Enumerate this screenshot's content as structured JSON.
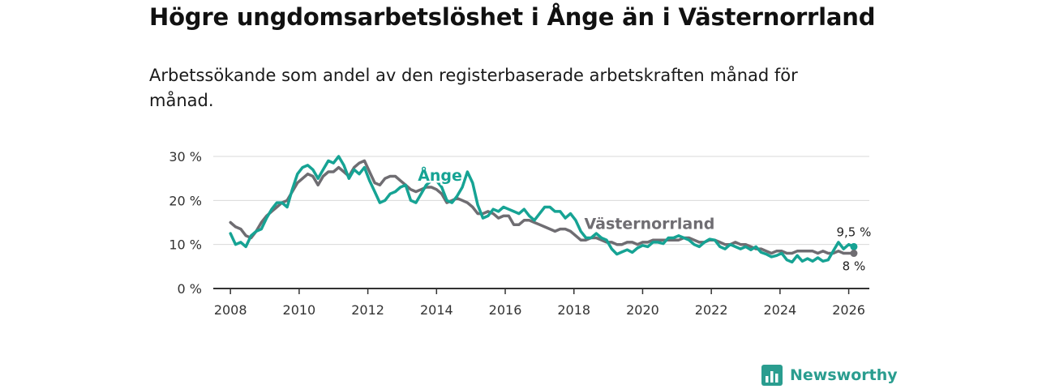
{
  "header": {
    "title": "Högre ungdomsarbetslöshet i Ånge än i Västernorrland",
    "subtitle": "Arbetssökande som andel av den registerbaserade arbetskraften månad för månad."
  },
  "brand": {
    "name": "Newsworthy",
    "icon": "newsworthy-logo-icon"
  },
  "colors": {
    "ange": "#16a394",
    "vasternorrland": "#6f6d72",
    "grid": "#d9d9d9",
    "axis": "#333333"
  },
  "chart_data": {
    "type": "line",
    "title": "Högre ungdomsarbetslöshet i Ånge än i Västernorrland",
    "xlabel": "",
    "ylabel": "",
    "xlim": [
      2007.5,
      2026.6
    ],
    "ylim": [
      0,
      30
    ],
    "x_ticks": [
      2008,
      2010,
      2012,
      2014,
      2016,
      2018,
      2020,
      2022,
      2024,
      2026
    ],
    "x_tick_labels": [
      "2008",
      "2010",
      "2012",
      "2014",
      "2016",
      "2018",
      "2020",
      "2022",
      "2024",
      "2026"
    ],
    "y_ticks": [
      0,
      10,
      20,
      30
    ],
    "y_tick_labels": [
      "0 %",
      "10 %",
      "20 %",
      "30 %"
    ],
    "grid": true,
    "series": [
      {
        "name": "Ånge",
        "label": "Ånge",
        "end_label": "9,5 %",
        "x": [
          2008.0,
          2008.15,
          2008.3,
          2008.45,
          2008.6,
          2008.75,
          2008.9,
          2009.05,
          2009.2,
          2009.35,
          2009.5,
          2009.65,
          2009.8,
          2009.95,
          2010.1,
          2010.25,
          2010.4,
          2010.55,
          2010.7,
          2010.85,
          2011.0,
          2011.15,
          2011.3,
          2011.45,
          2011.6,
          2011.75,
          2011.9,
          2012.05,
          2012.2,
          2012.35,
          2012.5,
          2012.65,
          2012.8,
          2012.95,
          2013.1,
          2013.25,
          2013.4,
          2013.55,
          2013.7,
          2013.85,
          2014.0,
          2014.15,
          2014.3,
          2014.45,
          2014.6,
          2014.75,
          2014.9,
          2015.05,
          2015.2,
          2015.35,
          2015.5,
          2015.65,
          2015.8,
          2015.95,
          2016.1,
          2016.25,
          2016.4,
          2016.55,
          2016.7,
          2016.85,
          2017.0,
          2017.15,
          2017.3,
          2017.45,
          2017.6,
          2017.75,
          2017.9,
          2018.05,
          2018.2,
          2018.35,
          2018.5,
          2018.65,
          2018.8,
          2018.95,
          2019.1,
          2019.25,
          2019.4,
          2019.55,
          2019.7,
          2019.85,
          2020.0,
          2020.15,
          2020.3,
          2020.45,
          2020.6,
          2020.75,
          2020.9,
          2021.05,
          2021.2,
          2021.35,
          2021.5,
          2021.65,
          2021.8,
          2021.95,
          2022.1,
          2022.25,
          2022.4,
          2022.55,
          2022.7,
          2022.85,
          2023.0,
          2023.15,
          2023.3,
          2023.45,
          2023.6,
          2023.75,
          2023.9,
          2024.05,
          2024.2,
          2024.35,
          2024.5,
          2024.65,
          2024.8,
          2024.95,
          2025.1,
          2025.25,
          2025.4,
          2025.55,
          2025.7,
          2025.85,
          2026.0,
          2026.15
        ],
        "values": [
          12.5,
          10.0,
          10.5,
          9.5,
          12.0,
          13.0,
          13.5,
          16.0,
          18.0,
          19.5,
          19.5,
          18.5,
          22.5,
          26.0,
          27.5,
          28.0,
          27.0,
          25.0,
          27.0,
          29.0,
          28.5,
          30.0,
          28.0,
          25.0,
          27.0,
          26.0,
          27.5,
          24.5,
          22.0,
          19.5,
          20.0,
          21.5,
          22.0,
          23.0,
          23.5,
          20.0,
          19.5,
          21.5,
          23.5,
          24.5,
          24.5,
          23.0,
          20.0,
          19.5,
          21.0,
          23.0,
          26.5,
          24.0,
          19.0,
          16.0,
          16.5,
          18.0,
          17.5,
          18.5,
          18.0,
          17.5,
          17.0,
          18.0,
          16.5,
          15.5,
          17.0,
          18.5,
          18.5,
          17.5,
          17.5,
          16.0,
          17.0,
          15.5,
          13.0,
          11.5,
          11.5,
          12.5,
          11.5,
          11.0,
          9.0,
          7.8,
          8.3,
          8.8,
          8.2,
          9.2,
          9.8,
          9.5,
          10.5,
          10.5,
          10.2,
          11.5,
          11.5,
          12.0,
          11.5,
          11.0,
          10.0,
          9.5,
          10.5,
          11.2,
          11.0,
          9.5,
          9.0,
          10.0,
          9.5,
          9.0,
          9.5,
          8.8,
          9.5,
          8.2,
          7.8,
          7.2,
          7.5,
          8.0,
          6.5,
          6.0,
          7.5,
          6.2,
          6.8,
          6.2,
          7.0,
          6.2,
          6.5,
          8.5,
          10.5,
          9.0,
          10.0,
          9.5
        ]
      },
      {
        "name": "Västernorrland",
        "label": "Västernorrland",
        "end_label": "8 %",
        "x": [
          2008.0,
          2008.15,
          2008.3,
          2008.45,
          2008.6,
          2008.75,
          2008.9,
          2009.05,
          2009.2,
          2009.35,
          2009.5,
          2009.65,
          2009.8,
          2009.95,
          2010.1,
          2010.25,
          2010.4,
          2010.55,
          2010.7,
          2010.85,
          2011.0,
          2011.15,
          2011.3,
          2011.45,
          2011.6,
          2011.75,
          2011.9,
          2012.05,
          2012.2,
          2012.35,
          2012.5,
          2012.65,
          2012.8,
          2012.95,
          2013.1,
          2013.25,
          2013.4,
          2013.55,
          2013.7,
          2013.85,
          2014.0,
          2014.15,
          2014.3,
          2014.45,
          2014.6,
          2014.75,
          2014.9,
          2015.05,
          2015.2,
          2015.35,
          2015.5,
          2015.65,
          2015.8,
          2015.95,
          2016.1,
          2016.25,
          2016.4,
          2016.55,
          2016.7,
          2016.85,
          2017.0,
          2017.15,
          2017.3,
          2017.45,
          2017.6,
          2017.75,
          2017.9,
          2018.05,
          2018.2,
          2018.35,
          2018.5,
          2018.65,
          2018.8,
          2018.95,
          2019.1,
          2019.25,
          2019.4,
          2019.55,
          2019.7,
          2019.85,
          2020.0,
          2020.15,
          2020.3,
          2020.45,
          2020.6,
          2020.75,
          2020.9,
          2021.05,
          2021.2,
          2021.35,
          2021.5,
          2021.65,
          2021.8,
          2021.95,
          2022.1,
          2022.25,
          2022.4,
          2022.55,
          2022.7,
          2022.85,
          2023.0,
          2023.15,
          2023.3,
          2023.45,
          2023.6,
          2023.75,
          2023.9,
          2024.05,
          2024.2,
          2024.35,
          2024.5,
          2024.65,
          2024.8,
          2024.95,
          2025.1,
          2025.25,
          2025.4,
          2025.55,
          2025.7,
          2025.85,
          2026.0,
          2026.15
        ],
        "values": [
          15.0,
          14.0,
          13.5,
          12.0,
          11.5,
          13.0,
          15.0,
          16.5,
          17.5,
          18.5,
          19.5,
          20.0,
          22.0,
          24.0,
          25.0,
          26.0,
          25.5,
          23.5,
          25.5,
          26.5,
          26.5,
          27.5,
          26.5,
          25.5,
          27.5,
          28.5,
          29.0,
          26.5,
          24.0,
          23.5,
          25.0,
          25.5,
          25.5,
          24.5,
          23.5,
          22.5,
          22.0,
          22.5,
          23.0,
          23.0,
          22.5,
          21.5,
          19.5,
          20.0,
          20.5,
          20.0,
          19.5,
          18.5,
          17.0,
          17.0,
          17.5,
          17.0,
          16.0,
          16.5,
          16.5,
          14.5,
          14.5,
          15.5,
          15.5,
          15.0,
          14.5,
          14.0,
          13.5,
          13.0,
          13.5,
          13.5,
          13.0,
          12.0,
          11.0,
          11.0,
          11.5,
          11.5,
          11.0,
          10.5,
          10.5,
          10.0,
          10.0,
          10.5,
          10.5,
          10.0,
          10.5,
          10.5,
          11.0,
          11.0,
          11.0,
          11.0,
          11.0,
          11.0,
          11.5,
          11.5,
          11.0,
          10.5,
          10.5,
          11.0,
          11.0,
          10.5,
          10.0,
          10.0,
          10.5,
          10.0,
          10.0,
          9.5,
          9.0,
          9.0,
          8.5,
          8.0,
          8.5,
          8.5,
          8.0,
          8.0,
          8.5,
          8.5,
          8.5,
          8.5,
          8.0,
          8.5,
          8.0,
          8.0,
          8.5,
          8.0,
          8.0,
          8.0
        ]
      }
    ],
    "annotations": [
      {
        "text": "Ånge",
        "series": "Ånge",
        "x": 2014.1,
        "y": 24.5
      },
      {
        "text": "Västernorrland",
        "series": "Västernorrland",
        "x": 2020.2,
        "y": 13.5
      }
    ]
  }
}
